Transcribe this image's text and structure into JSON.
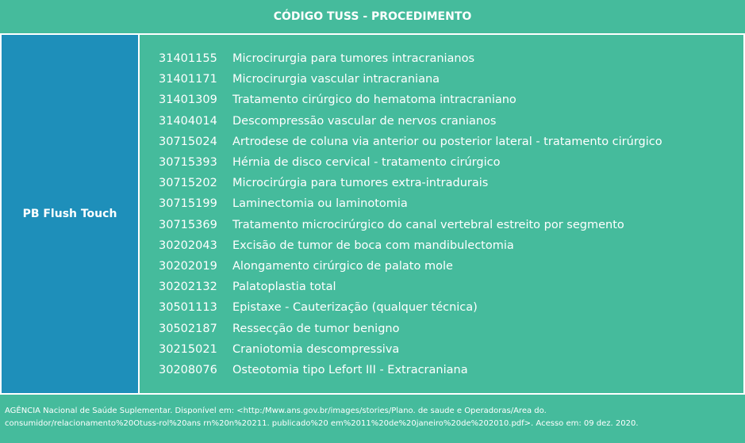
{
  "header": {
    "title": "CÓDIGO TUSS - PROCEDIMENTO"
  },
  "table": {
    "label": "PB Flush Touch",
    "rows": [
      {
        "code": "31401155",
        "procedure": "Microcirurgia para tumores intracranianos"
      },
      {
        "code": "31401171",
        "procedure": "Microcirurgia vascular intracraniana"
      },
      {
        "code": "31401309",
        "procedure": "Tratamento cirúrgico do hematoma intracraniano"
      },
      {
        "code": "31404014",
        "procedure": "Descompressão vascular de nervos cranianos"
      },
      {
        "code": "30715024",
        "procedure": "Artrodese de coluna via anterior ou posterior lateral - tratamento cirúrgico"
      },
      {
        "code": "30715393",
        "procedure": "Hérnia de disco cervical - tratamento cirúrgico"
      },
      {
        "code": "30715202",
        "procedure": "Microcirúrgia para tumores extra-intradurais"
      },
      {
        "code": "30715199",
        "procedure": "Laminectomia ou laminotomia"
      },
      {
        "code": "30715369",
        "procedure": "Tratamento microcirúrgico do canal vertebral estreito por segmento"
      },
      {
        "code": "30202043",
        "procedure": "Excisão de tumor de boca com mandibulectomia"
      },
      {
        "code": "30202019",
        "procedure": "Alongamento cirúrgico de palato mole"
      },
      {
        "code": "30202132",
        "procedure": "Palatoplastia total"
      },
      {
        "code": "30501113",
        "procedure": "Epistaxe - Cauterização (qualquer técnica)"
      },
      {
        "code": "30502187",
        "procedure": "Ressecção de tumor benigno"
      },
      {
        "code": "30215021",
        "procedure": "Craniotomia descompressiva"
      },
      {
        "code": "30208076",
        "procedure": "Osteotomia tipo Lefort III - Extracraniana"
      }
    ]
  },
  "footer": {
    "lines": [
      "AGÊNCIA Nacional de Saúde Suplementar. Disponível em: <http:/Mww.ans.gov.br/images/stories/Plano. de saude e Operadoras/Area do.",
      "consumidor/relacionamento%20Otuss-rol%20ans rn%20n%20211. publicado%20 em%2011%20de%20janeiro%20de%202010.pdf>. Acesso em: 09 dez. 2020."
    ]
  }
}
